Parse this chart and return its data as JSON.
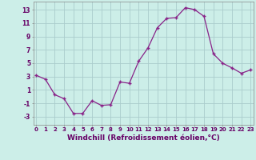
{
  "x": [
    0,
    1,
    2,
    3,
    4,
    5,
    6,
    7,
    8,
    9,
    10,
    11,
    12,
    13,
    14,
    15,
    16,
    17,
    18,
    19,
    20,
    21,
    22,
    23
  ],
  "y": [
    3.2,
    2.6,
    0.3,
    -0.3,
    -2.5,
    -2.5,
    -0.6,
    -1.3,
    -1.2,
    2.2,
    2.0,
    5.3,
    7.3,
    10.3,
    11.7,
    11.8,
    13.3,
    13.0,
    12.0,
    6.4,
    5.0,
    4.3,
    3.5,
    4.0
  ],
  "line_color": "#882288",
  "marker": "+",
  "marker_size": 3.5,
  "bg_color": "#cceee8",
  "grid_color": "#aacccc",
  "xlabel": "Windchill (Refroidissement éolien,°C)",
  "xlabel_fontsize": 6.5,
  "ytick_labels": [
    "13",
    "11",
    "9",
    "7",
    "5",
    "3",
    "1",
    "-1",
    "-3"
  ],
  "ytick_vals": [
    13,
    11,
    9,
    7,
    5,
    3,
    1,
    -1,
    -3
  ],
  "xtick_vals": [
    0,
    1,
    2,
    3,
    4,
    5,
    6,
    7,
    8,
    9,
    10,
    11,
    12,
    13,
    14,
    15,
    16,
    17,
    18,
    19,
    20,
    21,
    22,
    23
  ],
  "ylim": [
    -4.2,
    14.2
  ],
  "xlim": [
    -0.3,
    23.3
  ]
}
